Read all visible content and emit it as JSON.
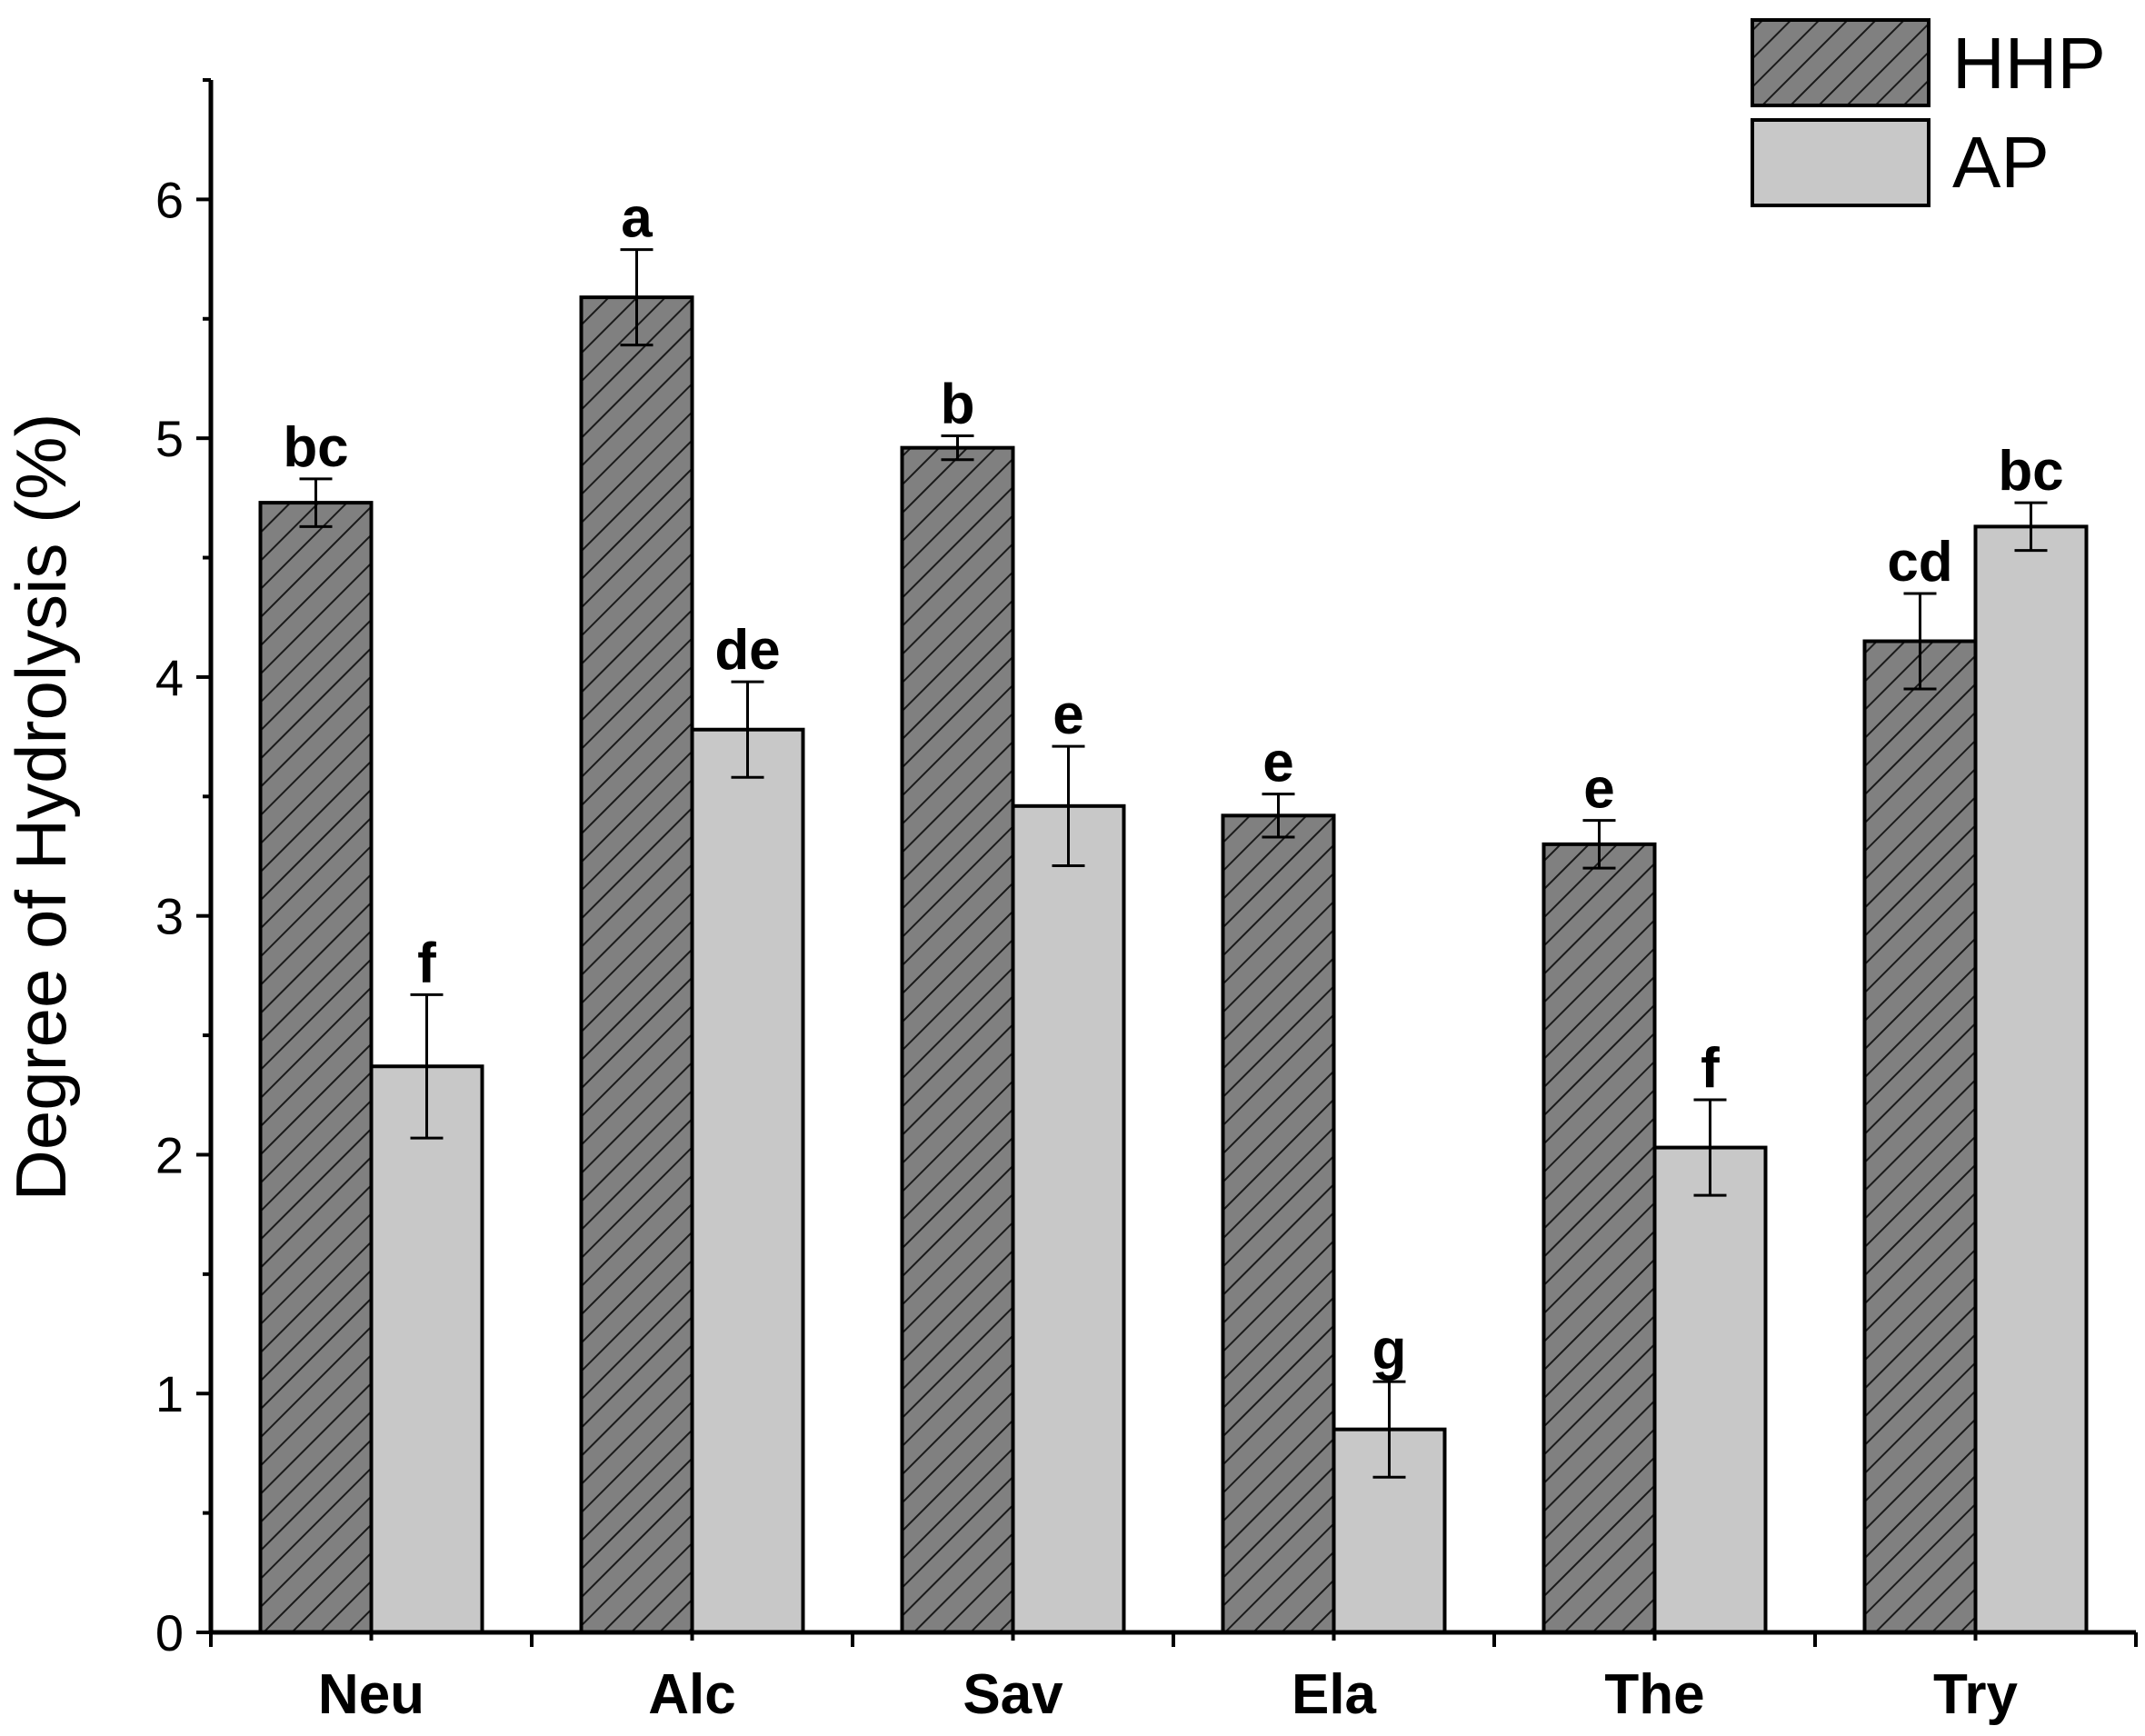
{
  "chart_data": {
    "type": "bar",
    "title": "",
    "xlabel": "",
    "ylabel": "Degree of Hydrolysis (%)",
    "ylim": [
      0,
      6.5
    ],
    "yticks": [
      0,
      1,
      2,
      3,
      4,
      5,
      6
    ],
    "categories": [
      "Neu",
      "Alc",
      "Sav",
      "Ela",
      "The",
      "Try"
    ],
    "series": [
      {
        "name": "HHP",
        "color": "#808080",
        "pattern": "diagonal-hatch",
        "values": [
          4.73,
          5.59,
          4.96,
          3.42,
          3.3,
          4.15
        ],
        "errors": [
          0.1,
          0.2,
          0.05,
          0.09,
          0.1,
          0.2
        ],
        "letters": [
          "bc",
          "a",
          "b",
          "e",
          "e",
          "cd"
        ]
      },
      {
        "name": "AP",
        "color": "#c8c8c8",
        "pattern": "solid",
        "values": [
          2.37,
          3.78,
          3.46,
          0.85,
          2.03,
          4.63
        ],
        "errors": [
          0.3,
          0.2,
          0.25,
          0.2,
          0.2,
          0.1
        ],
        "letters": [
          "f",
          "de",
          "e",
          "g",
          "f",
          "bc"
        ]
      }
    ],
    "legend": "top-right",
    "grid": false
  }
}
